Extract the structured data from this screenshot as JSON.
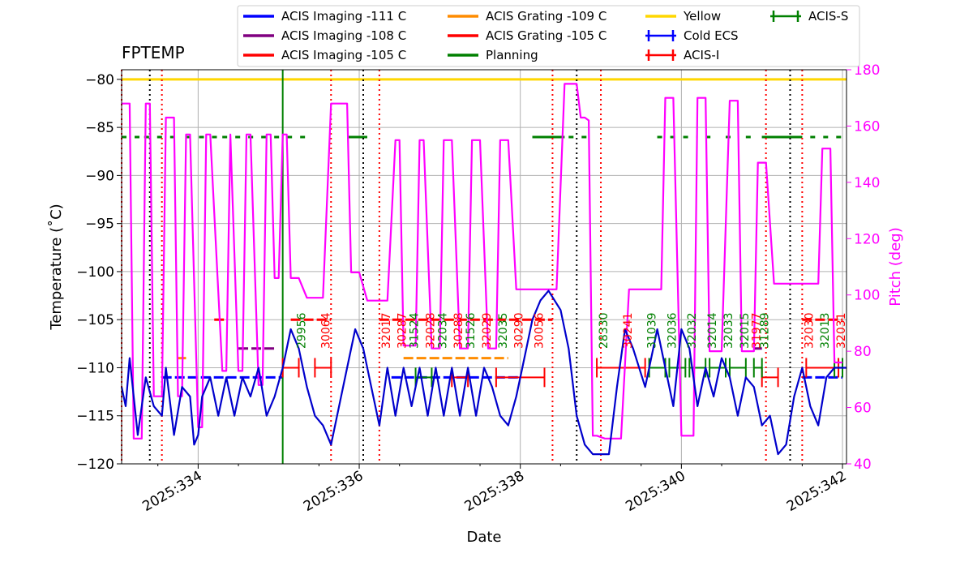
{
  "chart_data": {
    "type": "line",
    "title": "FPTEMP",
    "xlabel": "Date",
    "ylabel": "Temperature ($^\\circ$C)",
    "ylabel_display": "Temperature (˚C)",
    "y2label": "Pitch (deg)",
    "xlim": [
      333.05,
      342.05
    ],
    "ylim": [
      -120,
      -79
    ],
    "y2lim": [
      40,
      180
    ],
    "grid": true,
    "x_ticks": [
      {
        "v": 334,
        "label": "2025:334"
      },
      {
        "v": 336,
        "label": "2025:336"
      },
      {
        "v": 338,
        "label": "2025:338"
      },
      {
        "v": 340,
        "label": "2025:340"
      },
      {
        "v": 342,
        "label": "2025:342"
      }
    ],
    "y_ticks": [
      {
        "v": -80,
        "label": "−80"
      },
      {
        "v": -85,
        "label": "−85"
      },
      {
        "v": -90,
        "label": "−90"
      },
      {
        "v": -95,
        "label": "−95"
      },
      {
        "v": -100,
        "label": "−100"
      },
      {
        "v": -105,
        "label": "−105"
      },
      {
        "v": -110,
        "label": "−110"
      },
      {
        "v": -115,
        "label": "−115"
      },
      {
        "v": -120,
        "label": "−120"
      }
    ],
    "y2_ticks": [
      {
        "v": 40,
        "label": "40"
      },
      {
        "v": 60,
        "label": "60"
      },
      {
        "v": 80,
        "label": "80"
      },
      {
        "v": 100,
        "label": "100"
      },
      {
        "v": 120,
        "label": "120"
      },
      {
        "v": 140,
        "label": "140"
      },
      {
        "v": 160,
        "label": "160"
      },
      {
        "v": 180,
        "label": "180"
      }
    ],
    "legend": [
      {
        "label": "ACIS Imaging -111 C",
        "color": "#0000ff",
        "style": "line"
      },
      {
        "label": "ACIS Imaging -108 C",
        "color": "#800080",
        "style": "line"
      },
      {
        "label": "ACIS Imaging -105 C",
        "color": "#ff0000",
        "style": "line"
      },
      {
        "label": "ACIS Grating -109 C",
        "color": "#ff8c00",
        "style": "line"
      },
      {
        "label": "ACIS Grating -105 C",
        "color": "#ff0000",
        "style": "line"
      },
      {
        "label": "Planning",
        "color": "#008000",
        "style": "line"
      },
      {
        "label": "Yellow",
        "color": "#ffd700",
        "style": "line"
      },
      {
        "label": "Cold ECS",
        "color": "#0000ff",
        "style": "errorbar"
      },
      {
        "label": "ACIS-I",
        "color": "#ff0000",
        "style": "errorbar"
      },
      {
        "label": "ACIS-S",
        "color": "#008000",
        "style": "errorbar"
      }
    ],
    "yellow_limit": -80,
    "planning_limit": -86,
    "planning_segments": [
      [
        333.05,
        333.3
      ],
      [
        333.33,
        333.75
      ],
      [
        333.85,
        334.25
      ],
      [
        334.3,
        335.4
      ],
      [
        335.85,
        336.1
      ],
      [
        338.15,
        338.55
      ],
      [
        338.6,
        338.9
      ],
      [
        339.7,
        340.2
      ],
      [
        340.3,
        340.4
      ],
      [
        340.55,
        340.65
      ],
      [
        340.8,
        340.95
      ],
      [
        341.0,
        341.5
      ],
      [
        341.6,
        342.0
      ]
    ],
    "planning_solid": [
      [
        335.85,
        336.1
      ],
      [
        338.15,
        338.55
      ],
      [
        341.0,
        341.5
      ]
    ],
    "limit_segments": [
      {
        "color": "#0000ff",
        "y": -111,
        "x": [
          333.55,
          335.05
        ]
      },
      {
        "color": "#0000ff",
        "y": -111,
        "x": [
          336.4,
          338.0
        ]
      },
      {
        "color": "#0000ff",
        "y": -111,
        "x": [
          341.5,
          342.0
        ]
      },
      {
        "color": "#800080",
        "y": -108,
        "x": [
          334.5,
          334.95
        ]
      },
      {
        "color": "#800080",
        "y": -108,
        "x": [
          340.9,
          341.0
        ]
      },
      {
        "color": "#ff0000",
        "y": -105,
        "x": [
          334.2,
          334.35
        ]
      },
      {
        "color": "#ff0000",
        "y": -105,
        "x": [
          335.15,
          335.65
        ]
      },
      {
        "color": "#ff0000",
        "y": -105,
        "x": [
          336.25,
          338.4
        ]
      },
      {
        "color": "#ff0000",
        "y": -105,
        "x": [
          341.5,
          342.0
        ]
      },
      {
        "color": "#ff8c00",
        "y": -109,
        "x": [
          333.75,
          333.85
        ]
      },
      {
        "color": "#ff8c00",
        "y": -109,
        "x": [
          336.55,
          337.85
        ]
      }
    ],
    "obsids": [
      {
        "id": "29956",
        "x": 335.35,
        "color": "#008000"
      },
      {
        "id": "30064",
        "x": 335.65,
        "color": "#ff0000"
      },
      {
        "id": "32017",
        "x": 336.4,
        "color": "#ff0000"
      },
      {
        "id": "30287",
        "x": 336.6,
        "color": "#ff0000"
      },
      {
        "id": "31524",
        "x": 336.75,
        "color": "#008000"
      },
      {
        "id": "32028",
        "x": 336.95,
        "color": "#ff0000"
      },
      {
        "id": "32034",
        "x": 337.1,
        "color": "#008000"
      },
      {
        "id": "30288",
        "x": 337.3,
        "color": "#ff0000"
      },
      {
        "id": "31526",
        "x": 337.45,
        "color": "#008000"
      },
      {
        "id": "32029",
        "x": 337.65,
        "color": "#ff0000"
      },
      {
        "id": "32035",
        "x": 337.85,
        "color": "#008000"
      },
      {
        "id": "30290",
        "x": 338.05,
        "color": "#ff0000"
      },
      {
        "id": "30056",
        "x": 338.3,
        "color": "#ff0000"
      },
      {
        "id": "28330",
        "x": 339.1,
        "color": "#008000"
      },
      {
        "id": "30241",
        "x": 339.4,
        "color": "#ff0000"
      },
      {
        "id": "31039",
        "x": 339.7,
        "color": "#008000"
      },
      {
        "id": "32036",
        "x": 339.95,
        "color": "#008000"
      },
      {
        "id": "32032",
        "x": 340.2,
        "color": "#008000"
      },
      {
        "id": "32014",
        "x": 340.45,
        "color": "#008000"
      },
      {
        "id": "32033",
        "x": 340.65,
        "color": "#008000"
      },
      {
        "id": "32015",
        "x": 340.85,
        "color": "#008000"
      },
      {
        "id": "31977",
        "x": 341.0,
        "color": "#ff0000"
      },
      {
        "id": "31289",
        "x": 341.1,
        "color": "#008000"
      },
      {
        "id": "32030",
        "x": 341.65,
        "color": "#ff0000"
      },
      {
        "id": "32013",
        "x": 341.85,
        "color": "#008000"
      },
      {
        "id": "32031",
        "x": 342.05,
        "color": "#ff0000"
      }
    ],
    "red_vlines": [
      333.05,
      333.55,
      335.65,
      336.25,
      338.4,
      339.0,
      341.05,
      341.5
    ],
    "black_vlines": [
      333.4,
      336.05,
      338.7,
      341.35
    ],
    "green_vline": 335.05,
    "acis_i": [
      {
        "x": 335.15,
        "y": -110,
        "xerr": 0.1
      },
      {
        "x": 335.55,
        "y": -110,
        "xerr": 0.1
      },
      {
        "x": 337.25,
        "y": -111,
        "xerr": 0.1
      },
      {
        "x": 338.0,
        "y": -111,
        "xerr": 0.3
      },
      {
        "x": 339.25,
        "y": -110,
        "xerr": 0.3
      },
      {
        "x": 341.1,
        "y": -111,
        "xerr": 0.1
      },
      {
        "x": 341.75,
        "y": -110,
        "xerr": 0.2
      }
    ],
    "acis_s": [
      {
        "x": 336.8,
        "y": -111,
        "xerr": 0.1
      },
      {
        "x": 339.7,
        "y": -110,
        "xerr": 0.1
      },
      {
        "x": 339.95,
        "y": -110,
        "xerr": 0.1
      },
      {
        "x": 340.2,
        "y": -110,
        "xerr": 0.1
      },
      {
        "x": 340.45,
        "y": -110,
        "xerr": 0.1
      },
      {
        "x": 340.7,
        "y": -110,
        "xerr": 0.1
      },
      {
        "x": 340.95,
        "y": -110,
        "xerr": 0.05
      },
      {
        "x": 341.95,
        "y": -110,
        "xerr": 0.05
      }
    ],
    "series": [
      {
        "name": "FPTEMP",
        "color": "#0000cc",
        "axis": "left",
        "x": [
          333.05,
          333.1,
          333.15,
          333.25,
          333.35,
          333.45,
          333.55,
          333.6,
          333.7,
          333.8,
          333.9,
          333.95,
          334.0,
          334.05,
          334.15,
          334.25,
          334.35,
          334.45,
          334.55,
          334.65,
          334.75,
          334.85,
          334.95,
          335.05,
          335.15,
          335.25,
          335.35,
          335.45,
          335.55,
          335.65,
          335.75,
          335.85,
          335.95,
          336.05,
          336.15,
          336.25,
          336.35,
          336.45,
          336.55,
          336.65,
          336.75,
          336.85,
          336.95,
          337.05,
          337.15,
          337.25,
          337.35,
          337.45,
          337.55,
          337.65,
          337.75,
          337.85,
          337.95,
          338.05,
          338.15,
          338.25,
          338.35,
          338.5,
          338.6,
          338.7,
          338.8,
          338.9,
          339.0,
          339.1,
          339.2,
          339.3,
          339.4,
          339.55,
          339.7,
          339.8,
          339.9,
          340.0,
          340.1,
          340.2,
          340.3,
          340.4,
          340.5,
          340.6,
          340.7,
          340.8,
          340.9,
          341.0,
          341.1,
          341.2,
          341.3,
          341.4,
          341.5,
          341.6,
          341.7,
          341.8,
          341.9,
          342.0,
          342.05
        ],
        "y": [
          -112,
          -114,
          -109,
          -117,
          -111,
          -114,
          -115,
          -110,
          -117,
          -112,
          -113,
          -118,
          -117,
          -113,
          -111,
          -115,
          -111,
          -115,
          -111,
          -113,
          -110,
          -115,
          -113,
          -110,
          -106,
          -108,
          -112,
          -115,
          -116,
          -118,
          -114,
          -110,
          -106,
          -108,
          -112,
          -116,
          -110,
          -115,
          -110,
          -114,
          -110,
          -115,
          -110,
          -115,
          -110,
          -115,
          -110,
          -115,
          -110,
          -112,
          -115,
          -116,
          -113,
          -109,
          -105,
          -103,
          -102,
          -104,
          -108,
          -115,
          -118,
          -119,
          -119,
          -119,
          -112,
          -106,
          -108,
          -112,
          -106,
          -110,
          -114,
          -106,
          -108,
          -114,
          -110,
          -113,
          -109,
          -111,
          -115,
          -111,
          -112,
          -116,
          -115,
          -119,
          -118,
          -113,
          -110,
          -114,
          -116,
          -111,
          -110,
          -110,
          -110
        ]
      },
      {
        "name": "Pitch",
        "color": "#ff00ff",
        "axis": "right",
        "x": [
          333.05,
          333.1,
          333.15,
          333.2,
          333.25,
          333.3,
          333.35,
          333.4,
          333.45,
          333.5,
          333.55,
          333.6,
          333.7,
          333.75,
          333.8,
          333.85,
          333.9,
          334.0,
          334.05,
          334.1,
          334.15,
          334.3,
          334.35,
          334.4,
          334.5,
          334.55,
          334.6,
          334.65,
          334.75,
          334.8,
          334.85,
          334.9,
          334.95,
          335.0,
          335.05,
          335.1,
          335.15,
          335.25,
          335.35,
          335.45,
          335.55,
          335.65,
          335.7,
          335.85,
          335.9,
          335.95,
          336.0,
          336.1,
          336.25,
          336.35,
          336.45,
          336.5,
          336.55,
          336.6,
          336.7,
          336.75,
          336.8,
          336.9,
          337.0,
          337.05,
          337.15,
          337.25,
          337.35,
          337.4,
          337.5,
          337.6,
          337.7,
          337.75,
          337.85,
          337.95,
          338.05,
          338.15,
          338.25,
          338.35,
          338.45,
          338.55,
          338.65,
          338.7,
          338.75,
          338.8,
          338.85,
          338.9,
          338.95,
          339.05,
          339.15,
          339.25,
          339.35,
          339.45,
          339.55,
          339.65,
          339.7,
          339.75,
          339.8,
          339.85,
          339.9,
          340.0,
          340.1,
          340.15,
          340.2,
          340.3,
          340.35,
          340.4,
          340.5,
          340.6,
          340.7,
          340.75,
          340.8,
          340.9,
          340.95,
          341.05,
          341.15,
          341.25,
          341.35,
          341.45,
          341.5,
          341.55,
          341.6,
          341.7,
          341.75,
          341.8,
          341.85,
          341.9,
          342.0
        ],
        "y": [
          168,
          168,
          168,
          49,
          49,
          49,
          168,
          168,
          64,
          64,
          64,
          163,
          163,
          64,
          64,
          157,
          157,
          53,
          53,
          157,
          157,
          73,
          73,
          157,
          73,
          73,
          157,
          157,
          68,
          68,
          157,
          157,
          106,
          106,
          157,
          157,
          106,
          106,
          99,
          99,
          99,
          168,
          168,
          168,
          108,
          108,
          108,
          98,
          98,
          98,
          155,
          155,
          82,
          82,
          82,
          155,
          155,
          81,
          81,
          155,
          155,
          81,
          81,
          155,
          155,
          81,
          81,
          155,
          155,
          102,
          102,
          102,
          102,
          102,
          102,
          175,
          175,
          175,
          163,
          163,
          162,
          50,
          50,
          49,
          49,
          49,
          102,
          102,
          102,
          102,
          102,
          102,
          170,
          170,
          170,
          50,
          50,
          50,
          170,
          170,
          80,
          80,
          80,
          169,
          169,
          80,
          80,
          80,
          147,
          147,
          104,
          104,
          104,
          104,
          104,
          104,
          104,
          104,
          152,
          152,
          152,
          76,
          76
        ]
      }
    ]
  }
}
